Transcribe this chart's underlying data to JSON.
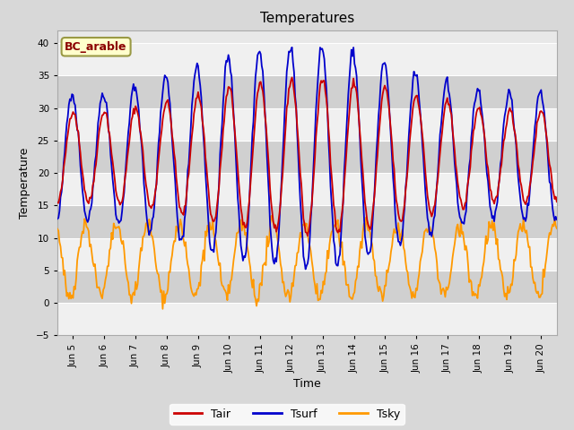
{
  "title": "Temperatures",
  "xlabel": "Time",
  "ylabel": "Temperature",
  "ylim": [
    -5,
    42
  ],
  "yticks": [
    -5,
    0,
    5,
    10,
    15,
    20,
    25,
    30,
    35,
    40
  ],
  "xlim": [
    4.5,
    20.5
  ],
  "xtick_positions": [
    5,
    6,
    7,
    8,
    9,
    10,
    11,
    12,
    13,
    14,
    15,
    16,
    17,
    18,
    19,
    20
  ],
  "xtick_labels": [
    "Jun 5",
    "Jun 6",
    "Jun 7",
    "Jun 8",
    "Jun 9",
    "Jun 10",
    "Jun 11",
    "Jun 12",
    "Jun 13",
    "Jun 14",
    "Jun 15",
    "Jun 16",
    "Jun 17",
    "Jun 18",
    "Jun 19",
    "Jun 20"
  ],
  "label_box_text": "BC_arable",
  "label_box_facecolor": "#ffffcc",
  "label_box_edgecolor": "#999944",
  "label_box_textcolor": "#8b0000",
  "tair_color": "#cc0000",
  "tsurf_color": "#0000cc",
  "tsky_color": "#ff9900",
  "legend_labels": [
    "Tair",
    "Tsurf",
    "Tsky"
  ],
  "bg_color": "#d8d8d8",
  "plot_bg_color": "#e8e8e8",
  "band_color_light": "#f0f0f0",
  "band_color_dark": "#d0d0d0",
  "grid_color": "white",
  "title_fontsize": 11,
  "axis_label_fontsize": 9,
  "tick_fontsize": 7.5,
  "n_points": 480,
  "time_start": 4.5,
  "time_end": 20.5
}
